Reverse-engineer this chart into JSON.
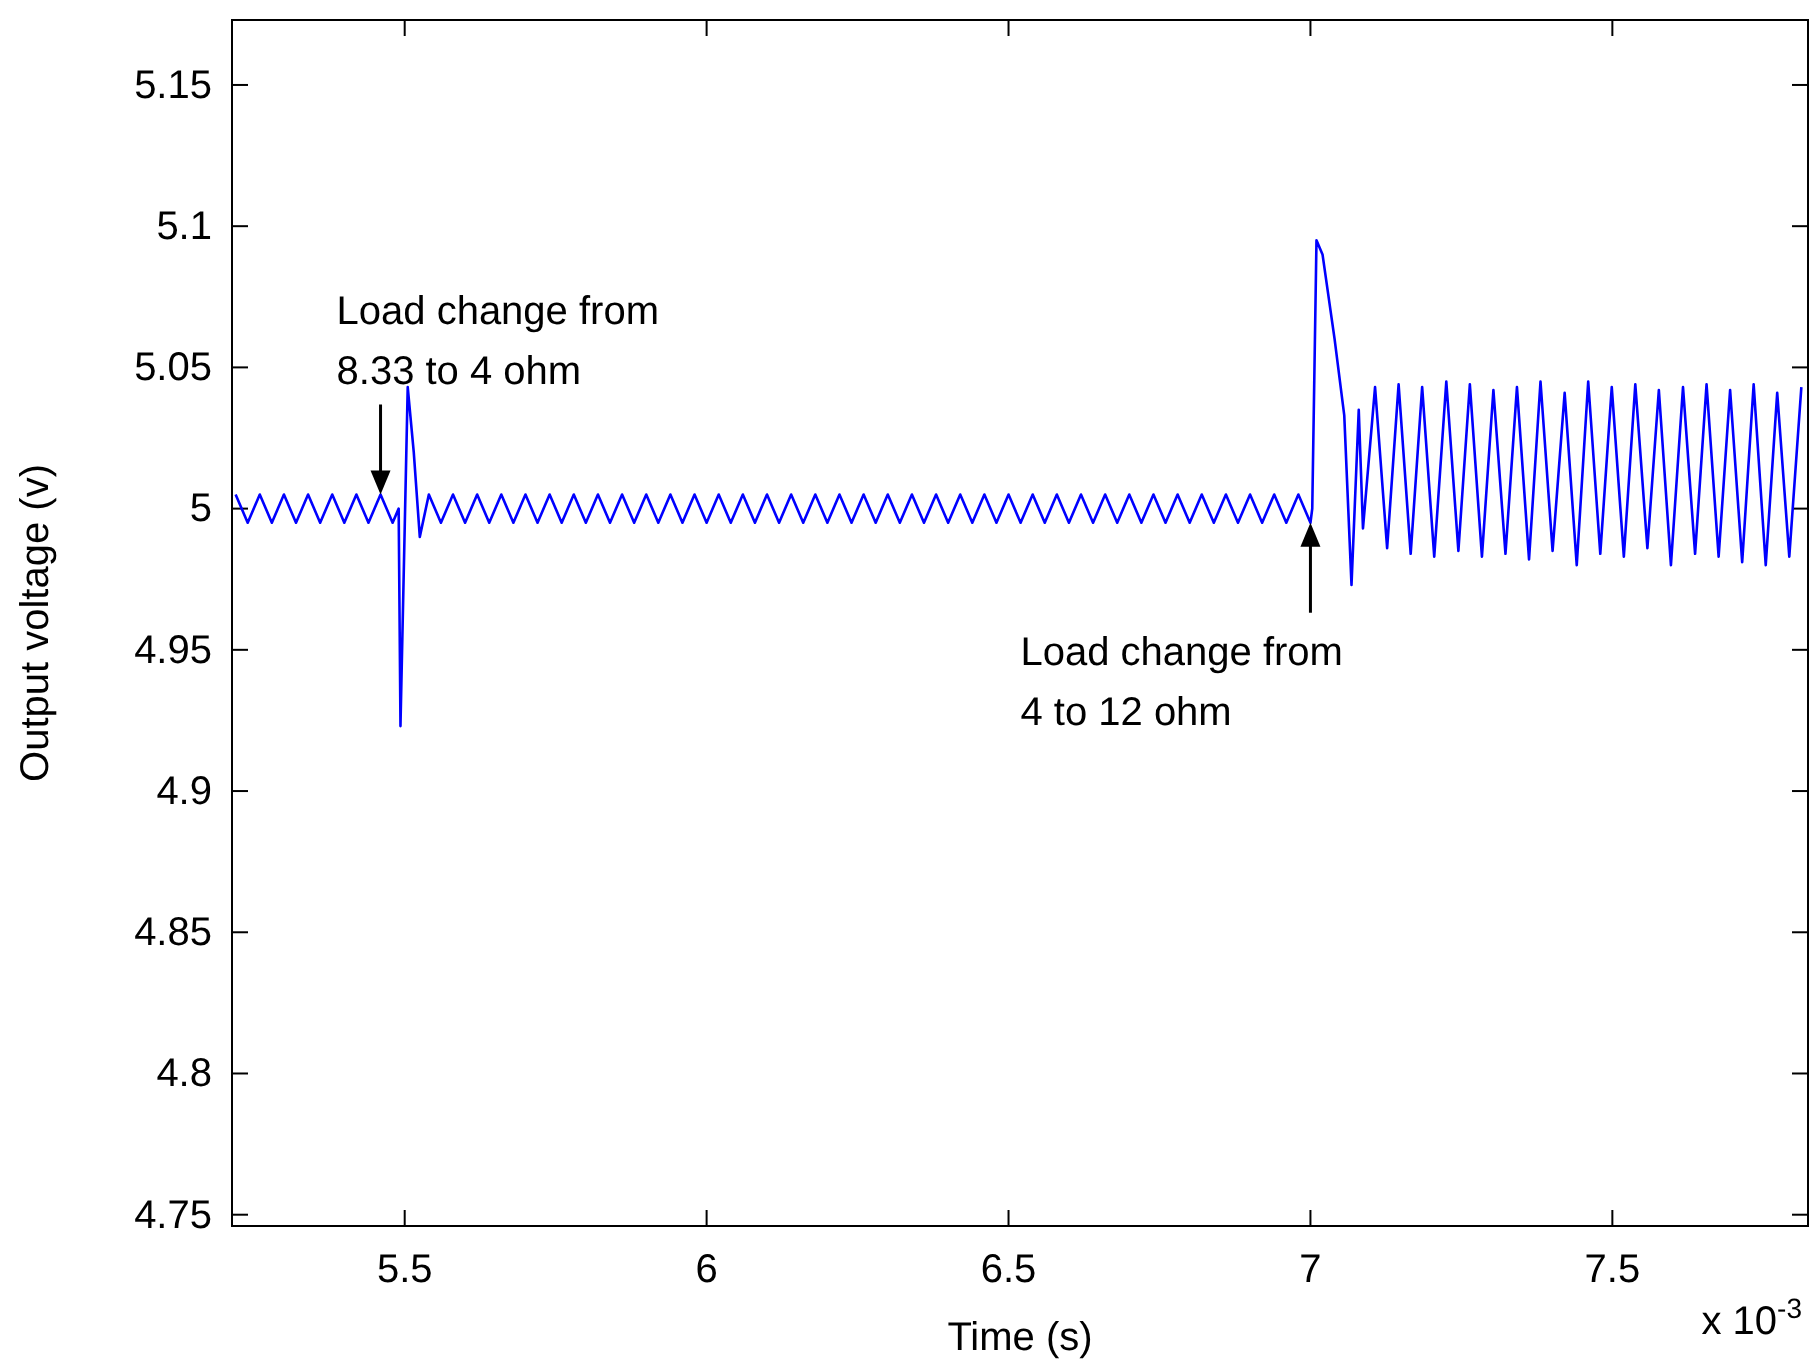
{
  "chart_data": {
    "type": "line",
    "xlabel": "Time (s)",
    "ylabel": "Output voltage (v)",
    "color": "#0000ff",
    "xlim": [
      5.214,
      7.824
    ],
    "xticks": [
      5.5,
      6,
      6.5,
      7,
      7.5
    ],
    "ylim": [
      4.746,
      5.173
    ],
    "yticks": [
      4.75,
      4.8,
      4.85,
      4.9,
      4.95,
      5,
      5.05,
      5.1,
      5.15
    ],
    "x": [
      5.22,
      5.24,
      5.26,
      5.28,
      5.3,
      5.32,
      5.34,
      5.36,
      5.38,
      5.4,
      5.42,
      5.44,
      5.46,
      5.48,
      5.49,
      5.493,
      5.505,
      5.515,
      5.525,
      5.54,
      5.56,
      5.58,
      5.6,
      5.62,
      5.64,
      5.66,
      5.68,
      5.7,
      5.72,
      5.74,
      5.76,
      5.78,
      5.8,
      5.82,
      5.84,
      5.86,
      5.88,
      5.9,
      5.92,
      5.94,
      5.96,
      5.98,
      6.0,
      6.02,
      6.04,
      6.06,
      6.08,
      6.1,
      6.12,
      6.14,
      6.16,
      6.18,
      6.2,
      6.22,
      6.24,
      6.26,
      6.28,
      6.3,
      6.32,
      6.34,
      6.36,
      6.38,
      6.4,
      6.42,
      6.44,
      6.46,
      6.48,
      6.5,
      6.52,
      6.54,
      6.56,
      6.58,
      6.6,
      6.62,
      6.64,
      6.66,
      6.68,
      6.7,
      6.72,
      6.74,
      6.76,
      6.78,
      6.8,
      6.82,
      6.84,
      6.86,
      6.88,
      6.9,
      6.92,
      6.94,
      6.96,
      6.98,
      7.0,
      7.003,
      7.01,
      7.02,
      7.04,
      7.056,
      7.068,
      7.08,
      7.087,
      7.107,
      7.127,
      7.146,
      7.166,
      7.185,
      7.205,
      7.225,
      7.245,
      7.264,
      7.284,
      7.303,
      7.323,
      7.342,
      7.362,
      7.381,
      7.401,
      7.421,
      7.441,
      7.46,
      7.48,
      7.499,
      7.519,
      7.538,
      7.558,
      7.577,
      7.597,
      7.617,
      7.637,
      7.656,
      7.676,
      7.695,
      7.715,
      7.734,
      7.754,
      7.773,
      7.793,
      7.813
    ],
    "values": [
      5.005,
      4.995,
      5.005,
      4.995,
      5.005,
      4.995,
      5.005,
      4.995,
      5.005,
      4.995,
      5.005,
      4.995,
      5.005,
      4.995,
      5.0,
      4.923,
      5.043,
      5.02,
      4.99,
      5.005,
      4.995,
      5.005,
      4.995,
      5.005,
      4.995,
      5.005,
      4.995,
      5.005,
      4.995,
      5.005,
      4.995,
      5.005,
      4.995,
      5.005,
      4.995,
      5.005,
      4.995,
      5.005,
      4.995,
      5.005,
      4.995,
      5.005,
      4.995,
      5.005,
      4.995,
      5.005,
      4.995,
      5.005,
      4.995,
      5.005,
      4.995,
      5.005,
      4.995,
      5.005,
      4.995,
      5.005,
      4.995,
      5.005,
      4.995,
      5.005,
      4.995,
      5.005,
      4.995,
      5.005,
      4.995,
      5.005,
      4.995,
      5.005,
      4.995,
      5.005,
      4.995,
      5.005,
      4.995,
      5.005,
      4.995,
      5.005,
      4.995,
      5.005,
      4.995,
      5.005,
      4.995,
      5.005,
      4.995,
      5.005,
      4.995,
      5.005,
      4.995,
      5.005,
      4.995,
      5.005,
      4.995,
      5.005,
      4.995,
      5.0,
      5.095,
      5.09,
      5.06,
      5.033,
      4.973,
      5.035,
      4.993,
      5.043,
      4.986,
      5.044,
      4.984,
      5.043,
      4.983,
      5.045,
      4.985,
      5.044,
      4.983,
      5.042,
      4.984,
      5.043,
      4.982,
      5.045,
      4.985,
      5.041,
      4.98,
      5.045,
      4.984,
      5.043,
      4.983,
      5.044,
      4.986,
      5.042,
      4.98,
      5.043,
      4.984,
      5.044,
      4.983,
      5.042,
      4.981,
      5.044,
      4.98,
      5.041,
      4.983,
      5.043
    ],
    "annotations": [
      {
        "text": "Load change from\n8.33 to 4 ohm",
        "x": 5.46,
        "y": 5.005
      },
      {
        "text": "Load change from\n4 to 12 ohm",
        "x": 7.0,
        "y": 4.995
      },
      "x 10$^{-3}$"
    ]
  }
}
